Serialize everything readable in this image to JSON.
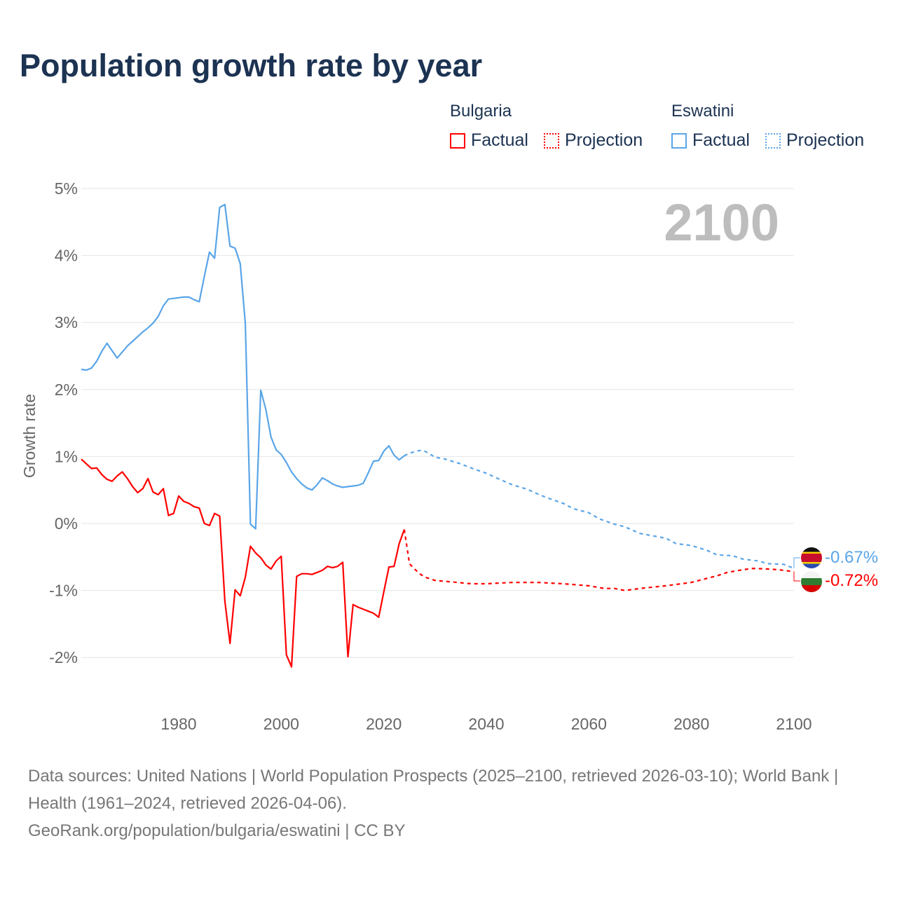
{
  "title": "Population growth rate by year",
  "legend": {
    "groups": [
      {
        "name": "Bulgaria",
        "factual": "Factual",
        "projection": "Projection",
        "color": "#ff0000"
      },
      {
        "name": "Eswatini",
        "factual": "Factual",
        "projection": "Projection",
        "color": "#5aa5e8"
      }
    ]
  },
  "current_year_label": "2100",
  "footer": {
    "line1": "Data sources: United Nations | World Population Prospects (2025–2100, retrieved 2026-03-10); World Bank | Health (1961–2024, retrieved 2026-04-06).",
    "line2": "GeoRank.org/population/bulgaria/eswatini | CC BY"
  },
  "end_labels": {
    "eswatini": "-0.67%",
    "bulgaria": "-0.72%"
  },
  "chart_data": {
    "type": "line",
    "title": "Population growth rate by year",
    "xlabel": "",
    "ylabel": "Growth rate",
    "xlim": [
      1961,
      2100
    ],
    "ylim": [
      -2.6,
      5.2
    ],
    "yticks": [
      5,
      4,
      3,
      2,
      1,
      0,
      -1,
      -2
    ],
    "ytick_labels": [
      "5%",
      "4%",
      "3%",
      "2%",
      "1%",
      "0%",
      "-1%",
      "-2%"
    ],
    "xticks": [
      1980,
      2000,
      2020,
      2040,
      2060,
      2080,
      2100
    ],
    "xtick_labels": [
      "1980",
      "2000",
      "2020",
      "2040",
      "2060",
      "2080",
      "2100"
    ],
    "grid": true,
    "series": [
      {
        "name": "Bulgaria Factual",
        "color": "#ff0000",
        "dashed": false,
        "start_year": 1961,
        "values": [
          0.96,
          0.89,
          0.82,
          0.83,
          0.73,
          0.66,
          0.63,
          0.71,
          0.77,
          0.67,
          0.55,
          0.46,
          0.52,
          0.67,
          0.47,
          0.43,
          0.52,
          0.12,
          0.15,
          0.41,
          0.33,
          0.3,
          0.25,
          0.23,
          0.0,
          -0.03,
          0.15,
          0.11,
          -1.16,
          -1.79,
          -0.99,
          -1.08,
          -0.8,
          -0.34,
          -0.44,
          -0.51,
          -0.62,
          -0.68,
          -0.56,
          -0.49,
          -1.96,
          -2.14,
          -0.79,
          -0.75,
          -0.75,
          -0.76,
          -0.73,
          -0.7,
          -0.64,
          -0.66,
          -0.64,
          -0.58,
          -1.99,
          -1.21,
          -1.25,
          -1.28,
          -1.31,
          -1.34,
          -1.4,
          -1.02,
          -0.65,
          -0.64,
          -0.3,
          -0.09
        ]
      },
      {
        "name": "Bulgaria Projection",
        "color": "#ff0000",
        "dashed": true,
        "x": [
          2024,
          2025,
          2026,
          2027,
          2028,
          2030,
          2033,
          2037,
          2040,
          2045,
          2050,
          2055,
          2060,
          2063,
          2065,
          2067,
          2070,
          2075,
          2080,
          2082,
          2085,
          2087,
          2090,
          2092,
          2095,
          2097,
          2100
        ],
        "values": [
          -0.09,
          -0.6,
          -0.68,
          -0.75,
          -0.8,
          -0.85,
          -0.87,
          -0.9,
          -0.9,
          -0.88,
          -0.88,
          -0.9,
          -0.93,
          -0.97,
          -0.97,
          -1.0,
          -0.97,
          -0.93,
          -0.88,
          -0.84,
          -0.78,
          -0.73,
          -0.69,
          -0.67,
          -0.68,
          -0.69,
          -0.72
        ]
      },
      {
        "name": "Eswatini Factual",
        "color": "#5aa5e8",
        "dashed": false,
        "start_year": 1961,
        "values": [
          2.3,
          2.29,
          2.32,
          2.42,
          2.57,
          2.69,
          2.58,
          2.47,
          2.56,
          2.65,
          2.72,
          2.79,
          2.86,
          2.92,
          2.99,
          3.09,
          3.25,
          3.35,
          3.36,
          3.37,
          3.38,
          3.38,
          3.34,
          3.31,
          3.69,
          4.05,
          3.96,
          4.72,
          4.76,
          4.14,
          4.11,
          3.88,
          2.98,
          -0.01,
          -0.08,
          1.99,
          1.7,
          1.29,
          1.1,
          1.03,
          0.91,
          0.77,
          0.67,
          0.59,
          0.53,
          0.5,
          0.58,
          0.68,
          0.64,
          0.59,
          0.56,
          0.54,
          0.55,
          0.56,
          0.57,
          0.6,
          0.76,
          0.93,
          0.94,
          1.08,
          1.16,
          1.02,
          0.95,
          1.01
        ]
      },
      {
        "name": "Eswatini Projection",
        "color": "#5aa5e8",
        "dashed": true,
        "x": [
          2024,
          2025,
          2027,
          2028,
          2030,
          2032,
          2035,
          2037,
          2040,
          2042,
          2045,
          2048,
          2050,
          2052,
          2055,
          2057,
          2060,
          2062,
          2065,
          2067,
          2070,
          2075,
          2077,
          2080,
          2083,
          2085,
          2088,
          2090,
          2093,
          2095,
          2098,
          2100
        ],
        "values": [
          1.01,
          1.05,
          1.09,
          1.08,
          0.99,
          0.96,
          0.89,
          0.83,
          0.75,
          0.68,
          0.58,
          0.51,
          0.44,
          0.38,
          0.3,
          0.22,
          0.16,
          0.07,
          -0.01,
          -0.05,
          -0.15,
          -0.22,
          -0.3,
          -0.33,
          -0.4,
          -0.47,
          -0.48,
          -0.53,
          -0.56,
          -0.6,
          -0.61,
          -0.67
        ]
      }
    ]
  }
}
